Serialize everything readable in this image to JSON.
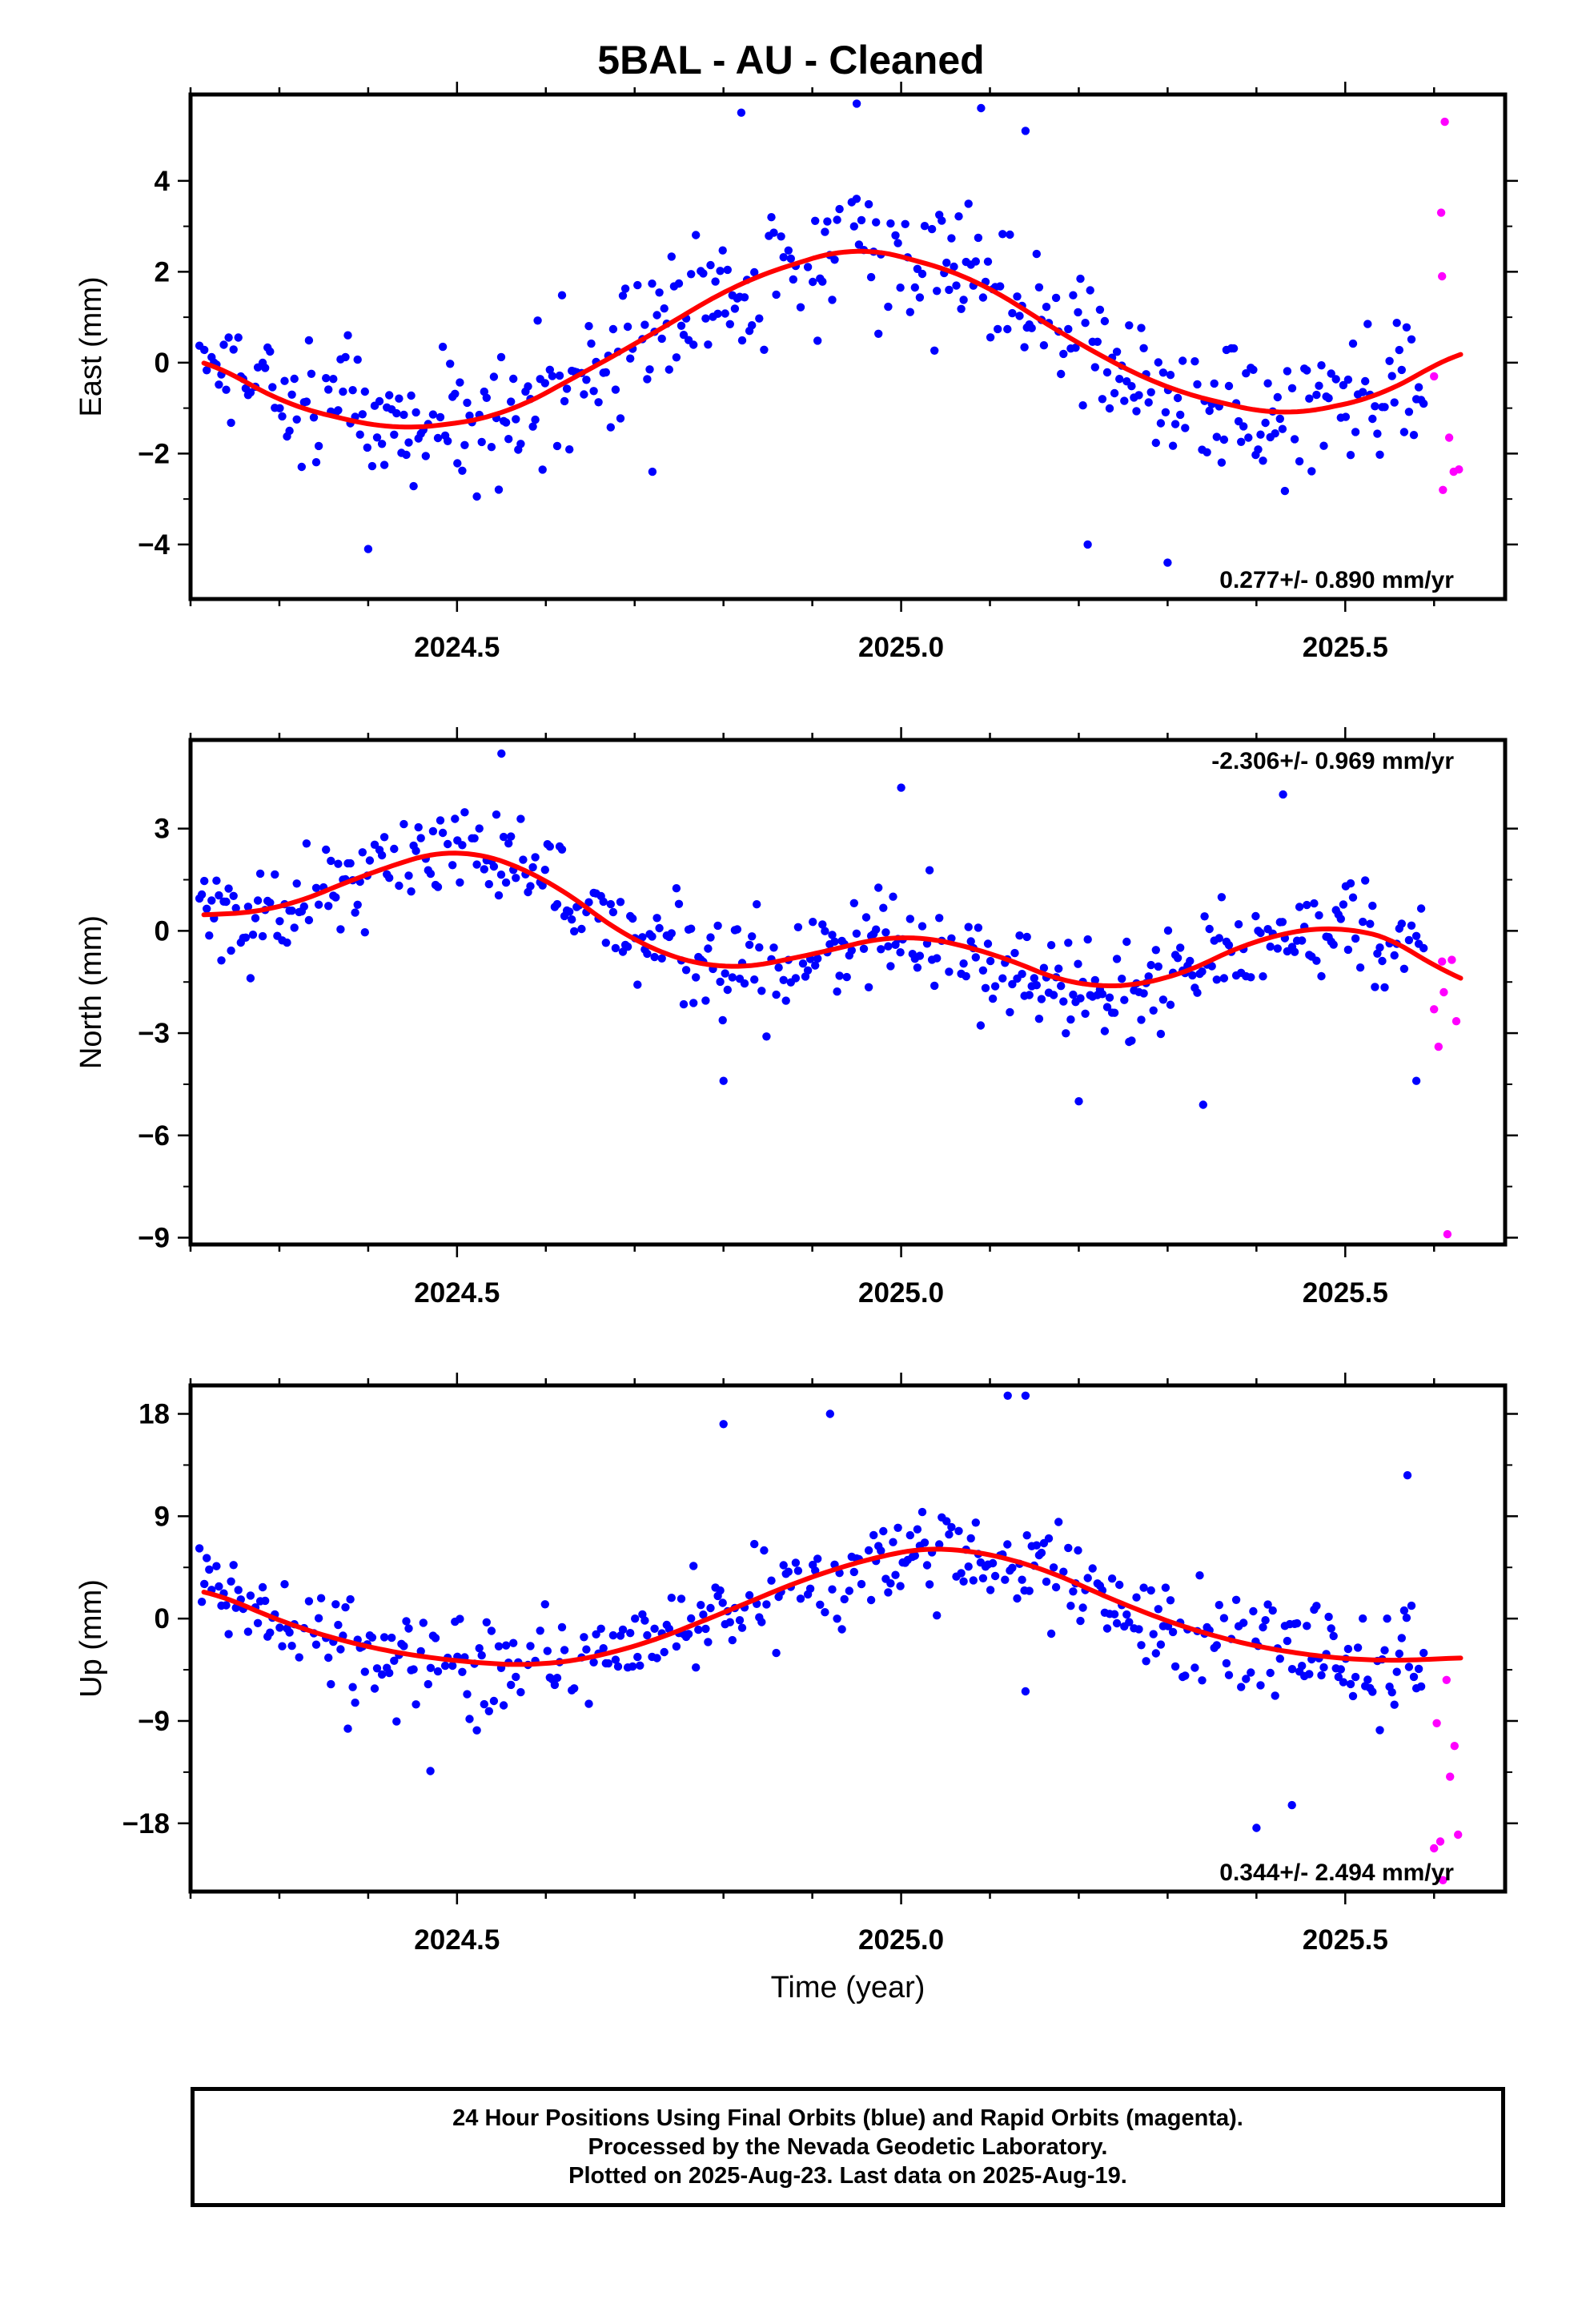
{
  "title": "5BAL  - AU - Cleaned",
  "colors": {
    "final_orbits": "#0000ff",
    "rapid_orbits": "#ff00ff",
    "fit": "#ff0000"
  },
  "xlabel": "Time (year)",
  "footer": {
    "line1": "24 Hour Positions Using Final Orbits (blue) and Rapid Orbits (magenta).",
    "line2": "Processed by the Nevada Geodetic Laboratory.",
    "line3": "Plotted on 2025-Aug-23. Last data on 2025-Aug-19."
  },
  "chart_data": [
    {
      "type": "scatter",
      "panel": "east",
      "ylabel": "East (mm)",
      "xlim": [
        2024.2,
        2025.68
      ],
      "ylim": [
        -5.2,
        5.9
      ],
      "xticks": [
        2024.5,
        2025.0,
        2025.5
      ],
      "yticks": [
        -4,
        -2,
        0,
        2,
        4
      ],
      "rate_label": "0.277+/- 0.890 mm/yr",
      "rate_position": "bottom-right",
      "fit": {
        "x": [
          2024.215,
          2024.3,
          2024.43,
          2024.55,
          2024.7,
          2024.82,
          2024.95,
          2025.08,
          2025.2,
          2025.3,
          2025.43,
          2025.55,
          2025.63
        ],
        "y": [
          0.15,
          -0.9,
          -1.5,
          -1.2,
          0.4,
          1.8,
          2.6,
          1.9,
          0.4,
          -0.6,
          -1.2,
          -0.7,
          0.35
        ]
      },
      "final_orbits": {
        "amplitude": 1.5,
        "spread": 1.2,
        "outliers": [
          [
            2024.4,
            -4.1
          ],
          [
            2024.82,
            5.5
          ],
          [
            2024.95,
            5.7
          ],
          [
            2025.09,
            5.6
          ],
          [
            2025.3,
            -4.4
          ],
          [
            2025.21,
            -4.0
          ],
          [
            2025.14,
            5.1
          ],
          [
            2024.72,
            -2.4
          ]
        ]
      },
      "rapid_orbits": {
        "x": [
          2025.6,
          2025.608,
          2025.609,
          2025.61,
          2025.612,
          2025.617,
          2025.622,
          2025.628
        ],
        "y": [
          -0.3,
          3.3,
          1.9,
          -2.8,
          5.3,
          -1.65,
          -2.4,
          -2.35
        ]
      }
    },
    {
      "type": "scatter",
      "panel": "north",
      "ylabel": "North (mm)",
      "xlim": [
        2024.2,
        2025.68
      ],
      "ylim": [
        -9.2,
        5.6
      ],
      "xticks": [
        2024.5,
        2025.0,
        2025.5
      ],
      "yticks": [
        -9,
        -6,
        -3,
        0,
        3
      ],
      "rate_label": "-2.306+/- 0.969 mm/yr",
      "rate_position": "top-right",
      "fit": {
        "x": [
          2024.215,
          2024.3,
          2024.4,
          2024.5,
          2024.6,
          2024.7,
          2024.8,
          2024.9,
          2025.0,
          2025.1,
          2025.2,
          2025.3,
          2025.4,
          2025.5,
          2025.58,
          2025.63
        ],
        "y": [
          0.45,
          0.6,
          1.7,
          2.5,
          1.6,
          -0.4,
          -1.2,
          -0.7,
          -0.05,
          -0.6,
          -1.7,
          -1.5,
          -0.2,
          0.2,
          -0.5,
          -1.7
        ]
      },
      "final_orbits": {
        "amplitude": 1.5,
        "spread": 1.1,
        "outliers": [
          [
            2024.55,
            5.2
          ],
          [
            2024.8,
            -4.4
          ],
          [
            2025.2,
            -5.0
          ],
          [
            2025.34,
            -5.1
          ],
          [
            2025.43,
            4.0
          ],
          [
            2025.0,
            4.2
          ],
          [
            2025.58,
            -4.4
          ]
        ]
      },
      "rapid_orbits": {
        "x": [
          2025.6,
          2025.605,
          2025.609,
          2025.611,
          2025.615,
          2025.62,
          2025.625
        ],
        "y": [
          -2.3,
          -3.4,
          -0.9,
          -1.8,
          -8.9,
          -0.85,
          -2.65
        ]
      }
    },
    {
      "type": "scatter",
      "panel": "up",
      "ylabel": "Up (mm)",
      "xlim": [
        2024.2,
        2025.68
      ],
      "ylim": [
        -24,
        20.5
      ],
      "xticks": [
        2024.5,
        2025.0,
        2025.5
      ],
      "yticks": [
        -18,
        -9,
        0,
        9,
        18
      ],
      "rate_label": "0.344+/- 2.494 mm/yr",
      "rate_position": "bottom-right",
      "fit": {
        "x": [
          2024.215,
          2024.3,
          2024.4,
          2024.5,
          2024.6,
          2024.7,
          2024.8,
          2024.9,
          2025.0,
          2025.05,
          2025.15,
          2025.25,
          2025.35,
          2025.45,
          2025.55,
          2025.63
        ],
        "y": [
          2.8,
          -0.3,
          -2.6,
          -3.8,
          -4.2,
          -2.6,
          0.5,
          3.8,
          6.0,
          6.4,
          4.8,
          1.2,
          -1.6,
          -3.2,
          -3.8,
          -3.4
        ]
      },
      "final_orbits": {
        "amplitude": 5.0,
        "spread": 3.6,
        "outliers": [
          [
            2024.8,
            17.1
          ],
          [
            2024.92,
            18.0
          ],
          [
            2025.12,
            19.6
          ],
          [
            2025.14,
            19.6
          ],
          [
            2025.4,
            -18.4
          ],
          [
            2025.44,
            -16.4
          ],
          [
            2025.14,
            -6.4
          ],
          [
            2024.47,
            -13.4
          ],
          [
            2025.57,
            12.6
          ]
        ]
      },
      "rapid_orbits": {
        "x": [
          2025.6,
          2025.603,
          2025.607,
          2025.61,
          2025.614,
          2025.618,
          2025.623,
          2025.627
        ],
        "y": [
          -20.2,
          -9.2,
          -19.6,
          -23.0,
          -5.4,
          -13.9,
          -11.2,
          -19.0
        ]
      }
    }
  ]
}
